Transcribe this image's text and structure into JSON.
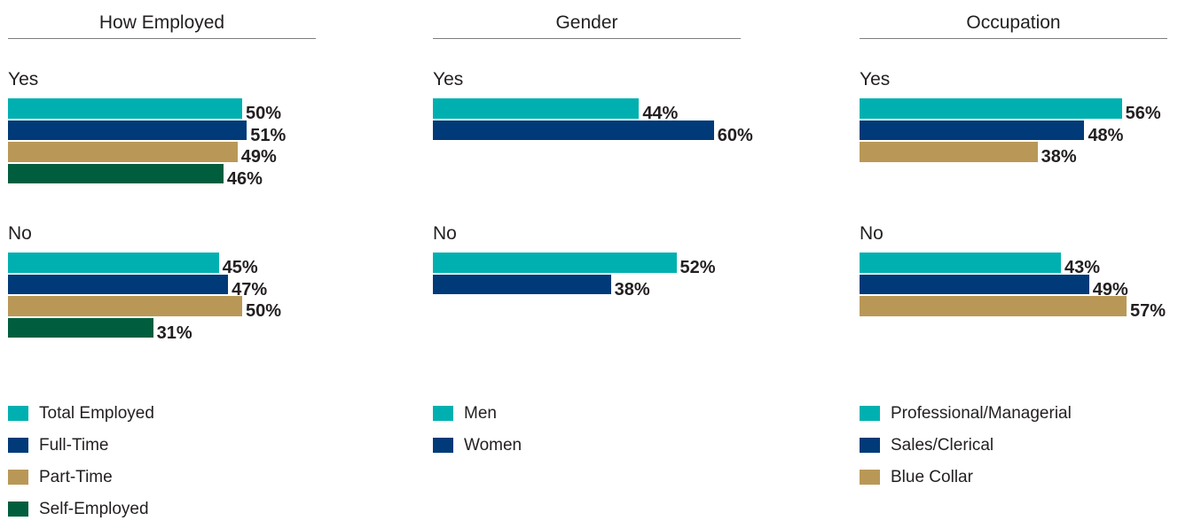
{
  "colors": {
    "teal": "#00b0b0",
    "navy": "#003a78",
    "tan": "#b99857",
    "green": "#005e3f"
  },
  "chart_data": [
    {
      "type": "bar",
      "orientation": "horizontal",
      "title": "How Employed",
      "groups": [
        "Yes",
        "No"
      ],
      "series": [
        {
          "name": "Total Employed",
          "color": "teal",
          "values": [
            50,
            45
          ],
          "labels": [
            "50%",
            "45%"
          ]
        },
        {
          "name": "Full-Time",
          "color": "navy",
          "values": [
            51,
            47
          ],
          "labels": [
            "51%",
            "47%"
          ]
        },
        {
          "name": "Part-Time",
          "color": "tan",
          "values": [
            49,
            50
          ],
          "labels": [
            "49%",
            "50%"
          ]
        },
        {
          "name": "Self-Employed",
          "color": "green",
          "values": [
            46,
            31
          ],
          "labels": [
            "46%",
            "31%"
          ]
        }
      ],
      "unit": "%",
      "legend_position": "bottom-left",
      "grid": false
    },
    {
      "type": "bar",
      "orientation": "horizontal",
      "title": "Gender",
      "groups": [
        "Yes",
        "No"
      ],
      "series": [
        {
          "name": "Men",
          "color": "teal",
          "values": [
            44,
            52
          ],
          "labels": [
            "44%",
            "52%"
          ]
        },
        {
          "name": "Women",
          "color": "navy",
          "values": [
            60,
            38
          ],
          "labels": [
            "60%",
            "38%"
          ]
        }
      ],
      "unit": "%",
      "legend_position": "bottom-left",
      "grid": false
    },
    {
      "type": "bar",
      "orientation": "horizontal",
      "title": "Occupation",
      "groups": [
        "Yes",
        "No"
      ],
      "series": [
        {
          "name": "Professional/Managerial",
          "color": "teal",
          "values": [
            56,
            43
          ],
          "labels": [
            "56%",
            "43%"
          ]
        },
        {
          "name": "Sales/Clerical",
          "color": "navy",
          "values": [
            48,
            49
          ],
          "labels": [
            "48%",
            "49%"
          ]
        },
        {
          "name": "Blue Collar",
          "color": "tan",
          "values": [
            38,
            57
          ],
          "labels": [
            "38%",
            "57%"
          ]
        }
      ],
      "unit": "%",
      "legend_position": "bottom-left",
      "grid": false
    }
  ]
}
